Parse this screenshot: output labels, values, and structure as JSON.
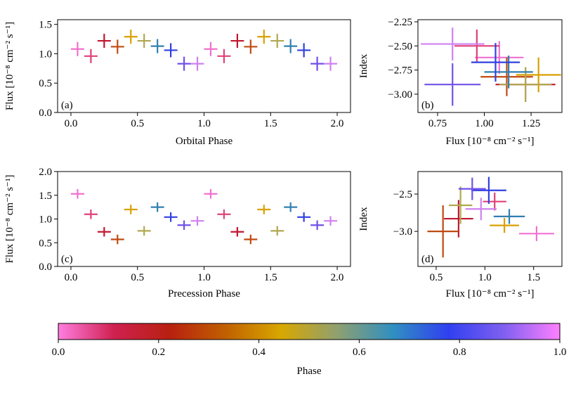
{
  "chart_data": [
    {
      "type": "errorbar",
      "annotation": "(a)",
      "xlabel": "Orbital Phase",
      "ylabel": "Flux [10⁻⁸ cm⁻² s⁻¹]",
      "x": [
        0.05,
        0.15,
        0.25,
        0.35,
        0.45,
        0.55,
        0.65,
        0.75,
        0.85,
        0.95,
        1.05,
        1.15,
        1.25,
        1.35,
        1.45,
        1.55,
        1.65,
        1.75,
        1.85,
        1.95
      ],
      "values": [
        1.08,
        0.96,
        1.22,
        1.12,
        1.29,
        1.22,
        1.13,
        1.06,
        0.83,
        0.83,
        1.08,
        0.96,
        1.22,
        1.12,
        1.29,
        1.22,
        1.13,
        1.06,
        0.83,
        0.83
      ],
      "xerr": [
        0.05,
        0.05,
        0.05,
        0.05,
        0.05,
        0.05,
        0.05,
        0.05,
        0.05,
        0.05,
        0.05,
        0.05,
        0.05,
        0.05,
        0.05,
        0.05,
        0.05,
        0.05,
        0.05,
        0.05
      ],
      "yerr": [
        0.12,
        0.12,
        0.12,
        0.12,
        0.12,
        0.12,
        0.12,
        0.12,
        0.12,
        0.12,
        0.12,
        0.12,
        0.12,
        0.12,
        0.12,
        0.12,
        0.12,
        0.12,
        0.12,
        0.12
      ],
      "colors": [
        "#f070d0",
        "#e0407a",
        "#c01830",
        "#c04a10",
        "#d9a000",
        "#b0a850",
        "#3080b0",
        "#3040e0",
        "#7050e8",
        "#d080f0",
        "#f070d0",
        "#e0407a",
        "#c01830",
        "#c04a10",
        "#d9a000",
        "#b0a850",
        "#3080b0",
        "#3040e0",
        "#7050e8",
        "#d080f0"
      ],
      "xlim": [
        -0.1,
        2.1
      ],
      "xticks": [
        {
          "value": 0,
          "label": "0.0"
        },
        0.5,
        {
          "value": 1,
          "label": "1.0"
        },
        1.5,
        {
          "value": 2,
          "label": "2.0"
        }
      ],
      "ylim": [
        0,
        1.58
      ],
      "yticks": [
        {
          "value": 0,
          "label": "0.0"
        },
        0.5,
        {
          "value": 1,
          "label": "1.0"
        },
        1.5
      ]
    },
    {
      "type": "errorbar",
      "annotation": "(b)",
      "xlabel": "Flux [10⁻⁸ cm⁻² s⁻¹]",
      "ylabel": "Index",
      "x": [
        1.08,
        0.96,
        1.22,
        1.12,
        1.29,
        1.22,
        1.13,
        1.06,
        0.83,
        0.83
      ],
      "values": [
        -2.62,
        -2.5,
        -2.9,
        -2.82,
        -2.8,
        -2.9,
        -2.77,
        -2.67,
        -2.9,
        -2.48
      ],
      "xerr": [
        0.13,
        0.12,
        0.16,
        0.14,
        0.12,
        0.14,
        0.13,
        0.13,
        0.15,
        0.17
      ],
      "yerr": [
        0.17,
        0.17,
        0.18,
        0.2,
        0.18,
        0.18,
        0.17,
        0.2,
        0.22,
        0.17
      ],
      "colors": [
        "#f070d0",
        "#e0407a",
        "#c01830",
        "#c04a10",
        "#d9a000",
        "#b0a850",
        "#3080b0",
        "#3040e0",
        "#7050e8",
        "#d080f0"
      ],
      "xlim": [
        0.645,
        1.415
      ],
      "xticks": [
        0.75,
        {
          "value": 1,
          "label": "1.00"
        },
        1.25
      ],
      "ylim": [
        -3.19,
        -2.228
      ],
      "yticks": [
        {
          "value": -2.25,
          "label": "−2.25"
        },
        {
          "value": -2.5,
          "label": "−2.50"
        },
        {
          "value": -2.75,
          "label": "−2.75"
        },
        {
          "value": -3,
          "label": "−3.00"
        }
      ]
    },
    {
      "type": "errorbar",
      "annotation": "(c)",
      "xlabel": "Precession Phase",
      "ylabel": "Flux [10⁻⁸ cm⁻² s⁻¹]",
      "x": [
        0.05,
        0.15,
        0.25,
        0.35,
        0.45,
        0.55,
        0.65,
        0.75,
        0.85,
        0.95,
        1.05,
        1.15,
        1.25,
        1.35,
        1.45,
        1.55,
        1.65,
        1.75,
        1.85,
        1.95
      ],
      "values": [
        1.53,
        1.1,
        0.73,
        0.57,
        1.2,
        0.75,
        1.25,
        1.04,
        0.87,
        0.96,
        1.53,
        1.1,
        0.73,
        0.57,
        1.2,
        0.75,
        1.25,
        1.04,
        0.87,
        0.96
      ],
      "xerr": [
        0.05,
        0.05,
        0.05,
        0.05,
        0.05,
        0.05,
        0.05,
        0.05,
        0.05,
        0.05,
        0.05,
        0.05,
        0.05,
        0.05,
        0.05,
        0.05,
        0.05,
        0.05,
        0.05,
        0.05
      ],
      "yerr": [
        0.1,
        0.1,
        0.1,
        0.1,
        0.1,
        0.1,
        0.1,
        0.1,
        0.1,
        0.1,
        0.1,
        0.1,
        0.1,
        0.1,
        0.1,
        0.1,
        0.1,
        0.1,
        0.1,
        0.1
      ],
      "colors": [
        "#f070d0",
        "#e0407a",
        "#c01830",
        "#c04a10",
        "#d9a000",
        "#b0a850",
        "#3080b0",
        "#3040e0",
        "#7050e8",
        "#d080f0",
        "#f070d0",
        "#e0407a",
        "#c01830",
        "#c04a10",
        "#d9a000",
        "#b0a850",
        "#3080b0",
        "#3040e0",
        "#7050e8",
        "#d080f0"
      ],
      "xlim": [
        -0.1,
        2.1
      ],
      "xticks": [
        {
          "value": 0,
          "label": "0.0"
        },
        0.5,
        {
          "value": 1,
          "label": "1.0"
        },
        1.5,
        {
          "value": 2,
          "label": "2.0"
        }
      ],
      "ylim": [
        0,
        2.0
      ],
      "yticks": [
        {
          "value": 0,
          "label": "0.0"
        },
        0.5,
        {
          "value": 1,
          "label": "1.0"
        },
        1.5,
        {
          "value": 2,
          "label": "2.0"
        }
      ]
    },
    {
      "type": "errorbar",
      "annotation": "(d)",
      "xlabel": "Flux [10⁻⁸ cm⁻² s⁻¹]",
      "ylabel": "Index",
      "x": [
        1.53,
        1.1,
        0.73,
        0.57,
        1.2,
        0.75,
        1.25,
        1.04,
        0.87,
        0.96
      ],
      "values": [
        -3.03,
        -2.6,
        -2.83,
        -3.0,
        -2.92,
        -2.65,
        -2.8,
        -2.45,
        -2.43,
        -2.7
      ],
      "xerr": [
        0.18,
        0.12,
        0.15,
        0.16,
        0.15,
        0.12,
        0.16,
        0.18,
        0.14,
        0.16
      ],
      "yerr": [
        0.1,
        0.12,
        0.25,
        0.35,
        0.1,
        0.25,
        0.1,
        0.18,
        0.15,
        0.15
      ],
      "colors": [
        "#f070d0",
        "#e0407a",
        "#c01830",
        "#c04a10",
        "#d9a000",
        "#b0a850",
        "#3080b0",
        "#3040e0",
        "#7050e8",
        "#d080f0"
      ],
      "xlim": [
        0.313,
        1.79
      ],
      "xticks": [
        0.5,
        {
          "value": 1,
          "label": "1.0"
        },
        1.5
      ],
      "ylim": [
        -3.47,
        -2.198
      ],
      "yticks": [
        {
          "value": -2.5,
          "label": "−2.5"
        },
        {
          "value": -3,
          "label": "−3.0"
        }
      ]
    },
    {
      "type": "colorbar",
      "xlabel": "Phase",
      "colors": [
        "#ff7ee0",
        "#d02050",
        "#b82010",
        "#c06000",
        "#d8a800",
        "#90a070",
        "#3090c0",
        "#3040f0",
        "#8060f0",
        "#ff80ff"
      ],
      "xlim": [
        0,
        1
      ],
      "xticks": [
        {
          "value": 0,
          "label": "0.0"
        },
        0.2,
        0.4,
        0.6,
        0.8,
        {
          "value": 1,
          "label": "1.0"
        }
      ]
    }
  ]
}
